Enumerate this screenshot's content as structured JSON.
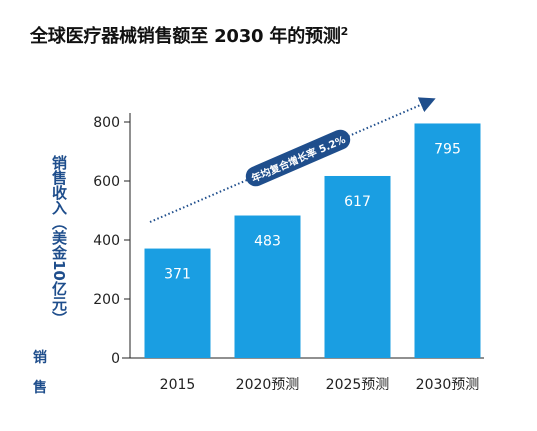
{
  "title": "全球医疗器械销售额至 2030 年的预测",
  "title_sup": "2",
  "chart_data": {
    "type": "bar",
    "title": "全球医疗器械销售额至 2030 年的预测",
    "categories": [
      "2015",
      "2020预测",
      "2025预测",
      "2030预测"
    ],
    "values": [
      371,
      483,
      617,
      795
    ],
    "data_labels": [
      "371",
      "483",
      "617",
      "795"
    ],
    "ylabel": "销售收入（美金10亿元）",
    "ylim": [
      0,
      800
    ],
    "yticks": [
      0,
      200,
      400,
      600,
      800
    ],
    "grid": false,
    "annotation": "年均复合增长率 5.2%",
    "bar_color": "#1a9ee2",
    "arrow_color": "#1f4e8c"
  },
  "ylabel_fragments": [
    "销",
    "售"
  ]
}
